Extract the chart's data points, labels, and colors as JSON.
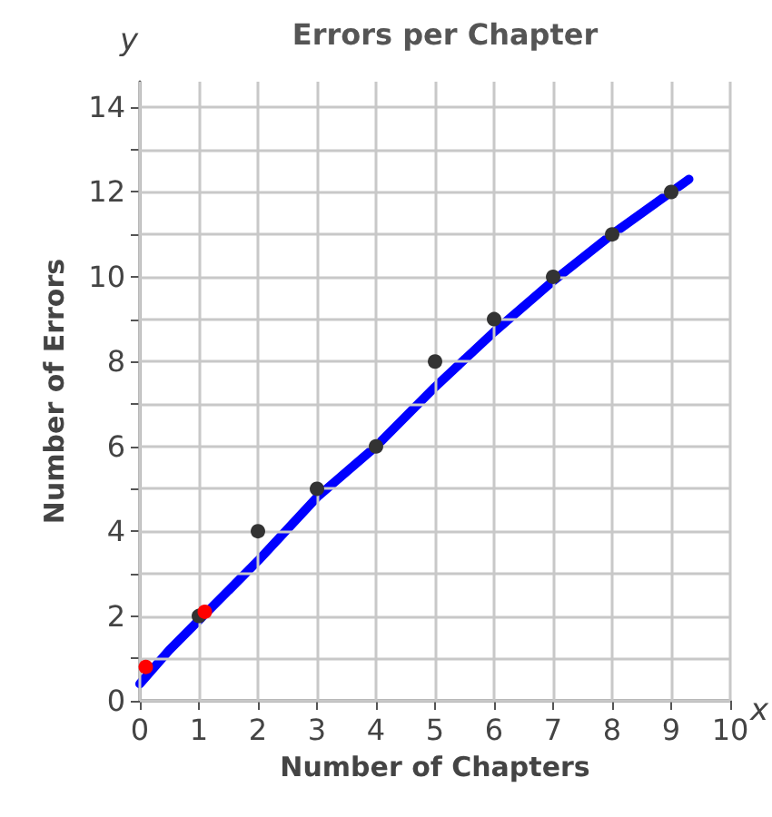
{
  "chart_data": {
    "type": "scatter",
    "title": "Errors per Chapter",
    "xlabel": "Number of Chapters",
    "ylabel": "Number of Errors",
    "annotations": [
      "x",
      "y"
    ],
    "series": [
      {
        "type": "line",
        "color": "#0000ff",
        "marker": "none",
        "x": [
          0,
          0.5,
          1,
          2,
          3,
          4,
          5,
          6,
          7,
          8,
          9,
          9.3
        ],
        "values": [
          0.4,
          1.2,
          1.9,
          3.3,
          4.8,
          6.0,
          7.4,
          8.7,
          9.9,
          11.0,
          12.0,
          12.3
        ]
      },
      {
        "color": "#333333",
        "marker": "circle",
        "x": [
          1,
          2,
          3,
          4,
          5,
          6,
          7,
          8,
          9
        ],
        "values": [
          2,
          4,
          5,
          6,
          8,
          9,
          10,
          11,
          12
        ]
      },
      {
        "color": "#ff0000",
        "marker": "circle",
        "x": [
          0.1,
          1.1
        ],
        "values": [
          0.8,
          2.1
        ]
      }
    ],
    "xlim": [
      0,
      10
    ],
    "xticks": [
      0,
      1,
      2,
      3,
      4,
      5,
      6,
      7,
      8,
      9,
      10
    ],
    "ylim": [
      0,
      14.6
    ],
    "yticks": [
      0,
      {
        "value": 1,
        "label": null
      },
      2,
      {
        "value": 3,
        "label": null
      },
      4,
      {
        "value": 5,
        "label": null
      },
      6,
      {
        "value": 7,
        "label": null
      },
      8,
      {
        "value": 9,
        "label": null
      },
      10,
      {
        "value": 11,
        "label": null
      },
      12,
      {
        "value": 13,
        "label": null
      },
      14
    ],
    "grid": true
  }
}
